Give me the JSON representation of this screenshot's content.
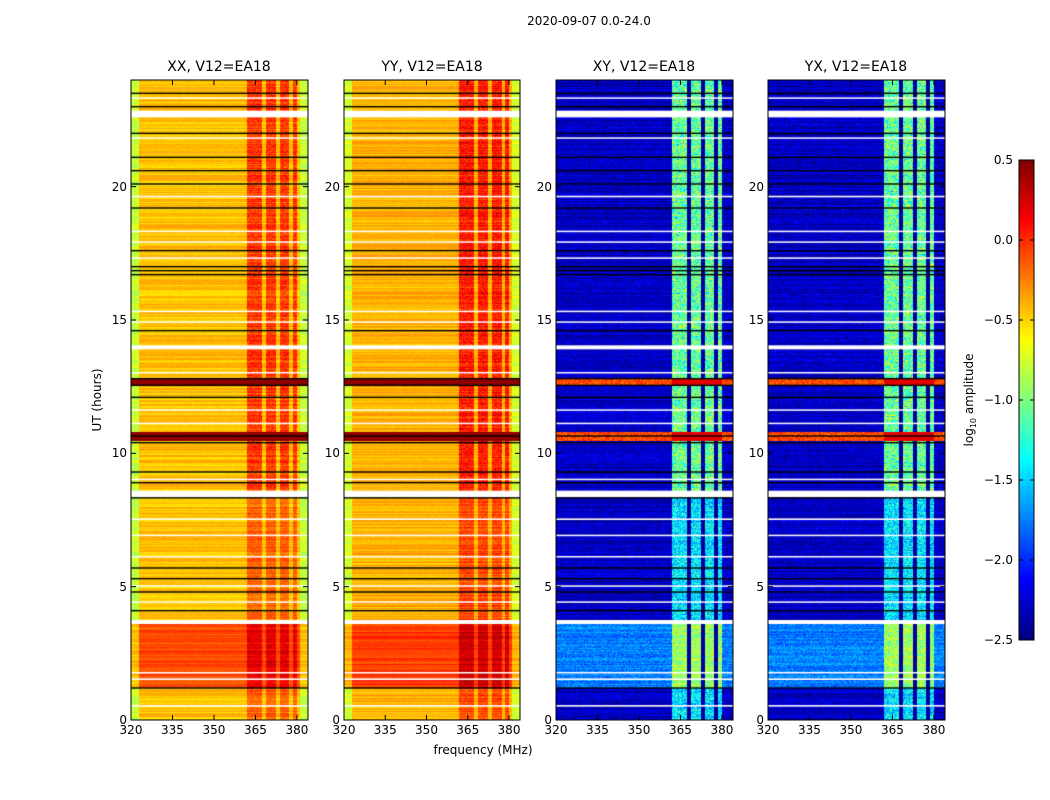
{
  "chart_data": {
    "type": "heatmap",
    "title": "2020-09-07 0.0-24.0",
    "xlabel": "frequency (MHz)",
    "ylabel": "UT (hours)",
    "xlim": [
      320,
      384
    ],
    "ylim": [
      0,
      24
    ],
    "xticks": [
      320,
      335,
      350,
      365,
      380
    ],
    "yticks": [
      0,
      5,
      10,
      15,
      20
    ],
    "colorbar": {
      "label_main": "log",
      "label_sub": "10",
      "label_rest": " amplitude",
      "range": [
        -2.5,
        0.5
      ],
      "ticks": [
        0.5,
        0.0,
        -0.5,
        -1.0,
        -1.5,
        -2.0,
        -2.5
      ],
      "tick_labels": [
        "0.5",
        "0.0",
        "−0.5",
        "−1.0",
        "−1.5",
        "−2.0",
        "−2.5"
      ],
      "colormap": "jet"
    },
    "panels": [
      {
        "title": "XX, V12=EA18",
        "type": "parallel",
        "base": -0.45,
        "early_base": -0.1,
        "band_boost": 0.45,
        "edge_drop": -0.35
      },
      {
        "title": "YY, V12=EA18",
        "type": "parallel",
        "base": -0.4,
        "early_base": -0.05,
        "band_boost": 0.5,
        "edge_drop": -0.35
      },
      {
        "title": "XY, V12=EA18",
        "type": "cross",
        "base": -2.3,
        "early_base": -1.75,
        "band_boost": 1.35,
        "edge_drop": 0
      },
      {
        "title": "YX, V12=EA18",
        "type": "cross",
        "base": -2.3,
        "early_base": -1.75,
        "band_boost": 1.35,
        "edge_drop": 0
      }
    ],
    "rfi_band_mhz": [
      362,
      380
    ],
    "band_gaps_mhz": [
      368,
      373,
      378
    ],
    "early_period_hours": [
      1.2,
      3.6
    ],
    "flagged_white_hours": [
      [
        3.6,
        3.75
      ],
      [
        8.35,
        8.6
      ],
      [
        22.6,
        22.85
      ],
      [
        0.5,
        0.56
      ],
      [
        1.5,
        1.56
      ],
      [
        1.75,
        1.8
      ],
      [
        4.4,
        4.45
      ],
      [
        5.0,
        5.05
      ],
      [
        6.1,
        6.15
      ],
      [
        6.9,
        6.95
      ],
      [
        7.5,
        7.56
      ],
      [
        9.0,
        9.05
      ],
      [
        11.1,
        11.15
      ],
      [
        11.6,
        11.65
      ],
      [
        13.0,
        13.05
      ],
      [
        13.9,
        14.05
      ],
      [
        14.9,
        14.95
      ],
      [
        15.3,
        15.35
      ],
      [
        17.3,
        17.35
      ],
      [
        17.9,
        17.95
      ],
      [
        18.3,
        18.35
      ],
      [
        19.6,
        19.66
      ],
      [
        21.8,
        21.85
      ],
      [
        23.3,
        23.35
      ]
    ],
    "flagged_black_hours": [
      1.2,
      4.1,
      4.8,
      5.3,
      5.7,
      8.33,
      8.9,
      9.3,
      10.4,
      10.65,
      12.1,
      12.55,
      12.8,
      14.6,
      16.7,
      16.85,
      17.0,
      17.6,
      19.2,
      20.1,
      20.6,
      21.1,
      22.0,
      23.0,
      23.5
    ],
    "strong_rows_hours": [
      [
        10.45,
        10.8
      ],
      [
        12.55,
        12.8
      ]
    ]
  }
}
